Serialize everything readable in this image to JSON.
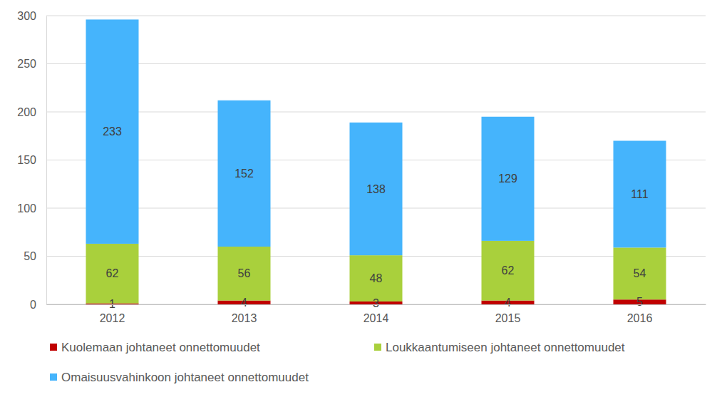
{
  "chart_data": {
    "type": "bar",
    "stacked": true,
    "data_labels": true,
    "grid": true,
    "legend": "bottom",
    "categories": [
      "2012",
      "2013",
      "2014",
      "2015",
      "2016"
    ],
    "series": [
      {
        "name": "Kuolemaan johtaneet onnettomuudet",
        "color": "#c00000",
        "values": [
          1,
          4,
          3,
          4,
          5
        ]
      },
      {
        "name": "Loukkaantumiseen johtaneet onnettomuudet",
        "color": "#a9d03c",
        "values": [
          62,
          56,
          48,
          62,
          54
        ]
      },
      {
        "name": "Omaisuusvahinkoon johtaneet onnettomuudet",
        "color": "#45b4fc",
        "values": [
          233,
          152,
          138,
          129,
          111
        ]
      }
    ],
    "ylim": [
      0,
      300
    ],
    "yticks": [
      0,
      50,
      100,
      150,
      200,
      250,
      300
    ]
  }
}
